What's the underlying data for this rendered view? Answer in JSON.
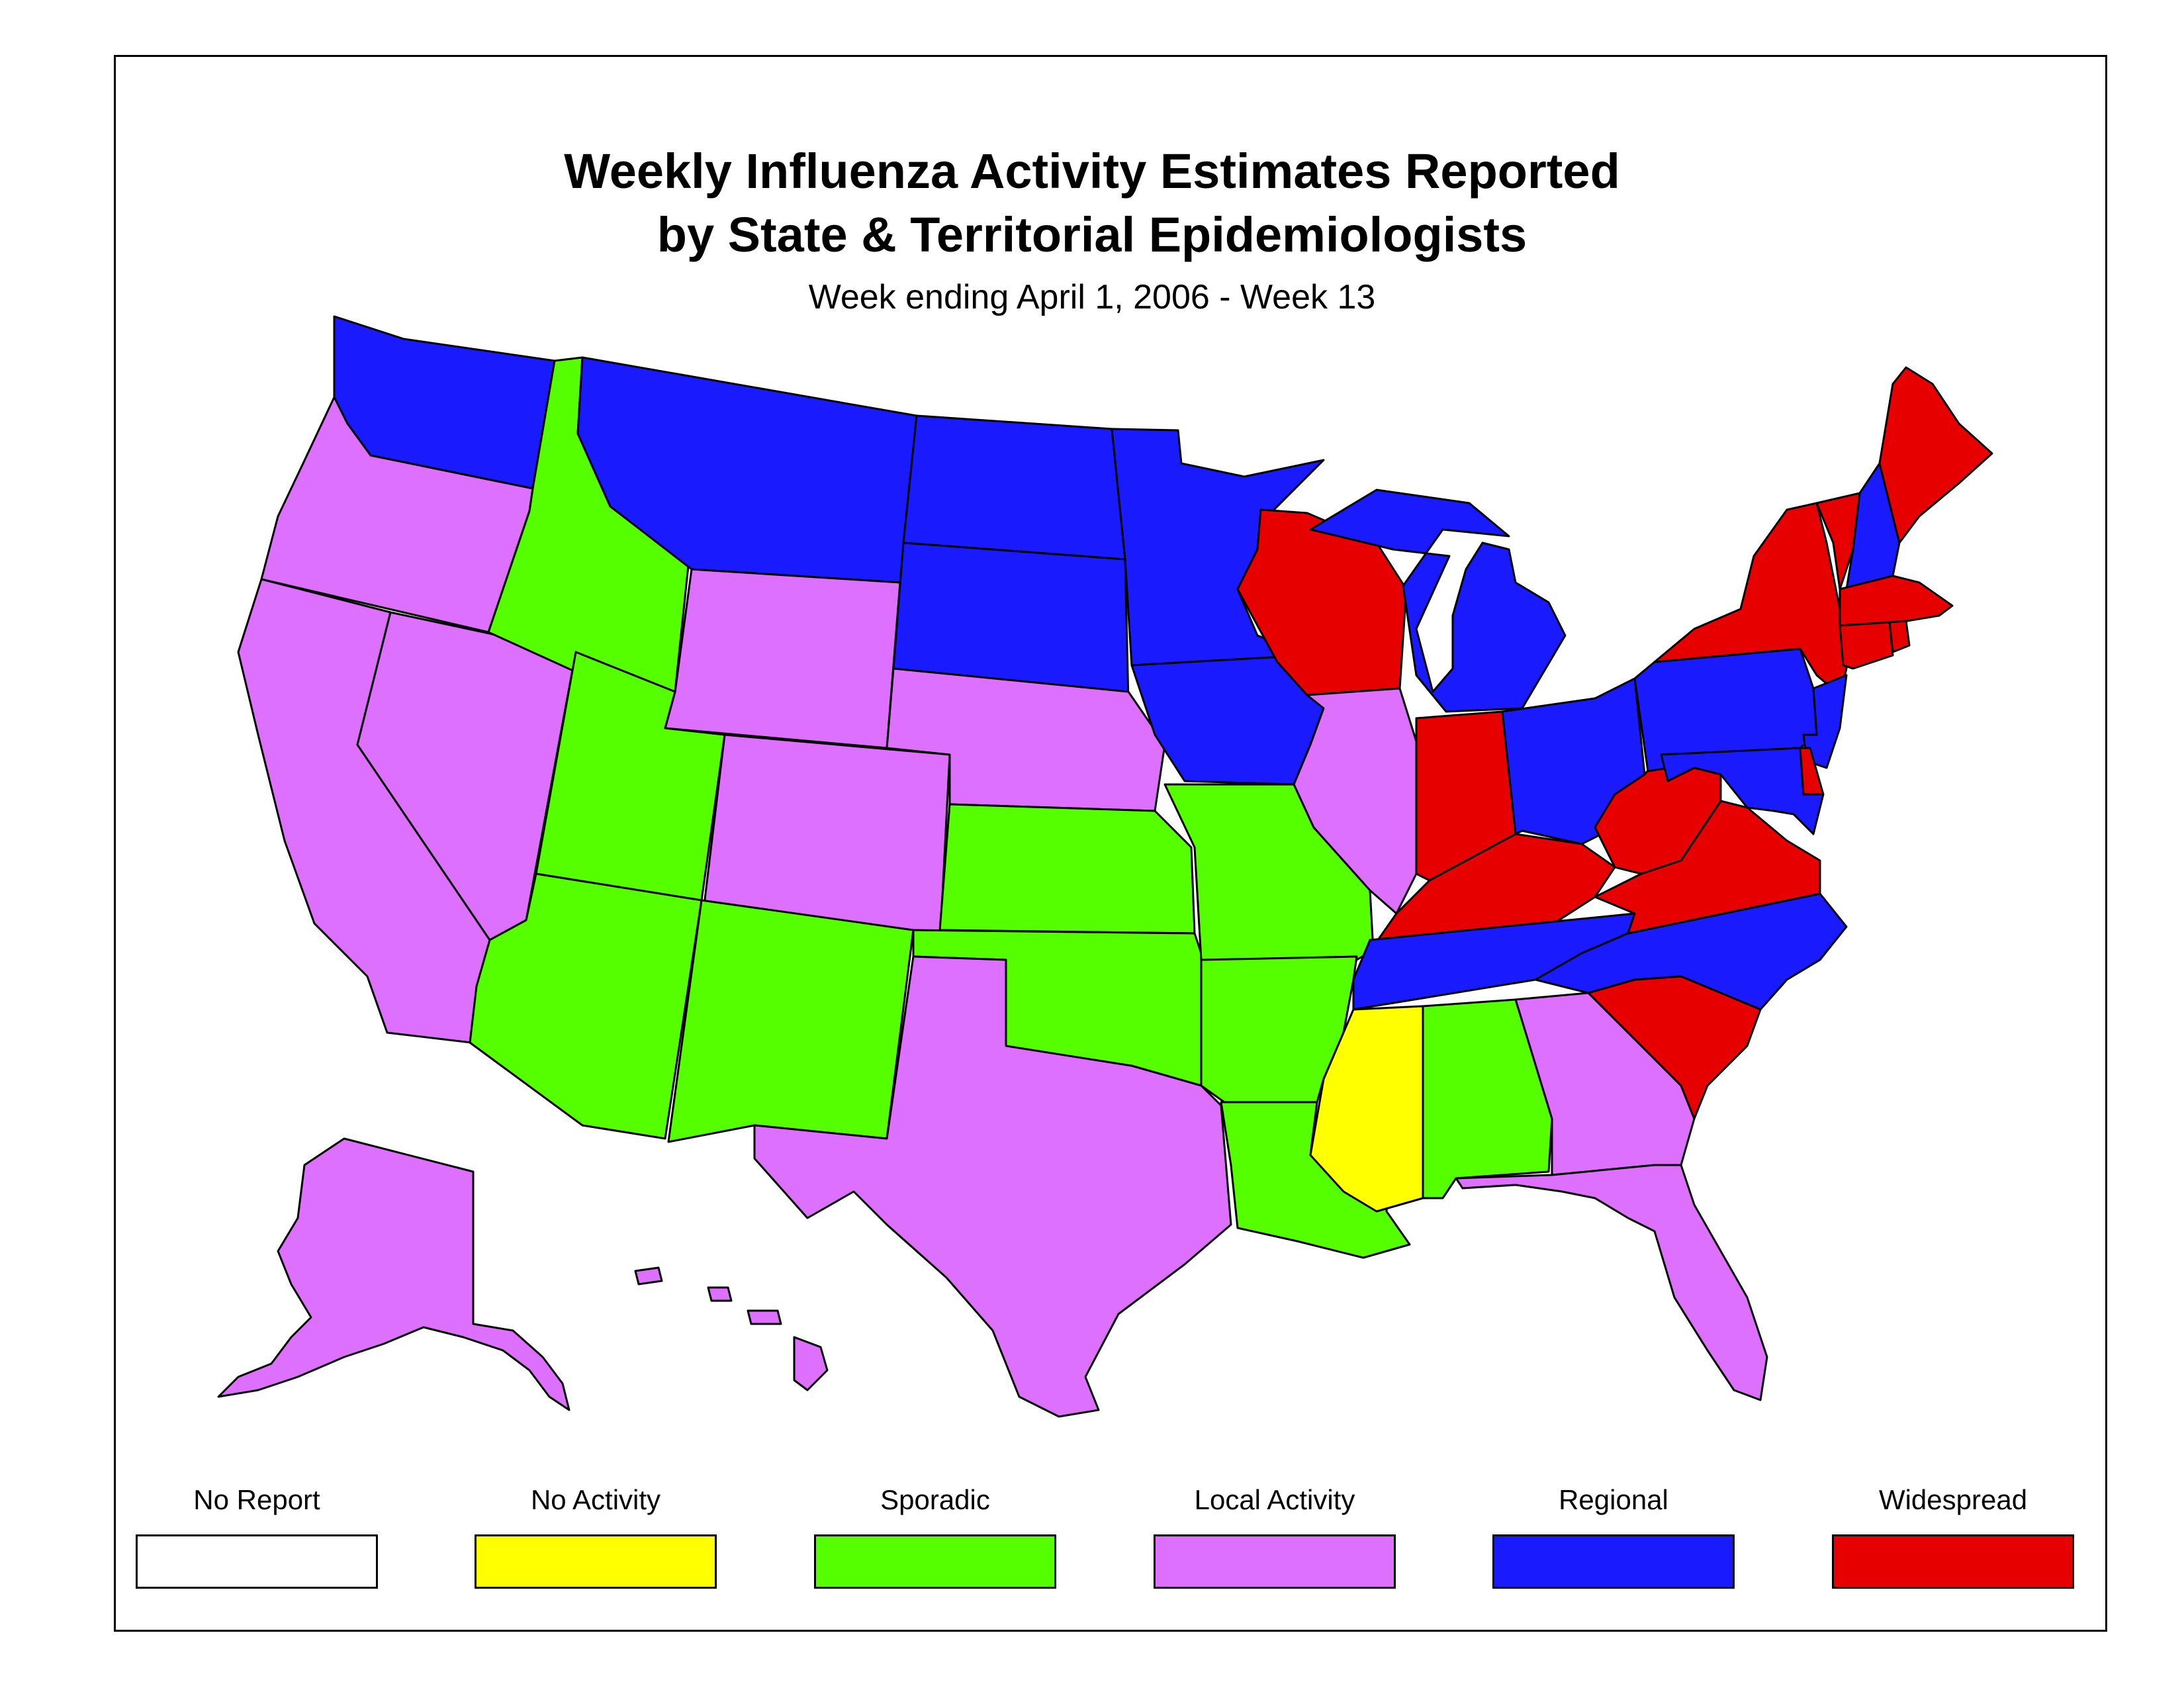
{
  "title_line1": "Weekly Influenza Activity Estimates Reported",
  "title_line2": "by State & Territorial Epidemiologists",
  "subtitle": "Week ending April 1, 2006 - Week 13",
  "colors": {
    "No Report": "#ffffff",
    "No Activity": "#ffff00",
    "Sporadic": "#55ff00",
    "Local Activity": "#dd70ff",
    "Regional": "#1a1aff",
    "Widespread": "#e60000"
  },
  "legend": [
    {
      "label": "No Report",
      "color": "#ffffff"
    },
    {
      "label": "No Activity",
      "color": "#ffff00"
    },
    {
      "label": "Sporadic",
      "color": "#55ff00"
    },
    {
      "label": "Local Activity",
      "color": "#dd70ff"
    },
    {
      "label": "Regional",
      "color": "#1a1aff"
    },
    {
      "label": "Widespread",
      "color": "#e60000"
    }
  ],
  "state_activity": {
    "WA": "Regional",
    "OR": "Local Activity",
    "CA": "Local Activity",
    "NV": "Local Activity",
    "ID": "Sporadic",
    "MT": "Regional",
    "WY": "Local Activity",
    "UT": "Sporadic",
    "AZ": "Sporadic",
    "CO": "Local Activity",
    "NM": "Sporadic",
    "ND": "Regional",
    "SD": "Regional",
    "NE": "Local Activity",
    "KS": "Sporadic",
    "OK": "Sporadic",
    "TX": "Local Activity",
    "MN": "Regional",
    "IA": "Regional",
    "MO": "Sporadic",
    "AR": "Sporadic",
    "LA": "Sporadic",
    "WI": "Widespread",
    "IL": "Local Activity",
    "MI": "Regional",
    "IN": "Widespread",
    "OH": "Regional",
    "KY": "Widespread",
    "TN": "Regional",
    "MS": "No Activity",
    "AL": "Sporadic",
    "GA": "Local Activity",
    "FL": "Local Activity",
    "SC": "Widespread",
    "NC": "Regional",
    "VA": "Widespread",
    "WV": "Widespread",
    "PA": "Regional",
    "NY": "Widespread",
    "VT": "Widespread",
    "NH": "Regional",
    "ME": "Widespread",
    "MA": "Widespread",
    "CT": "Widespread",
    "RI": "Widespread",
    "NJ": "Regional",
    "DE": "Widespread",
    "MD": "Regional",
    "AK": "Local Activity",
    "HI": "Local Activity"
  }
}
